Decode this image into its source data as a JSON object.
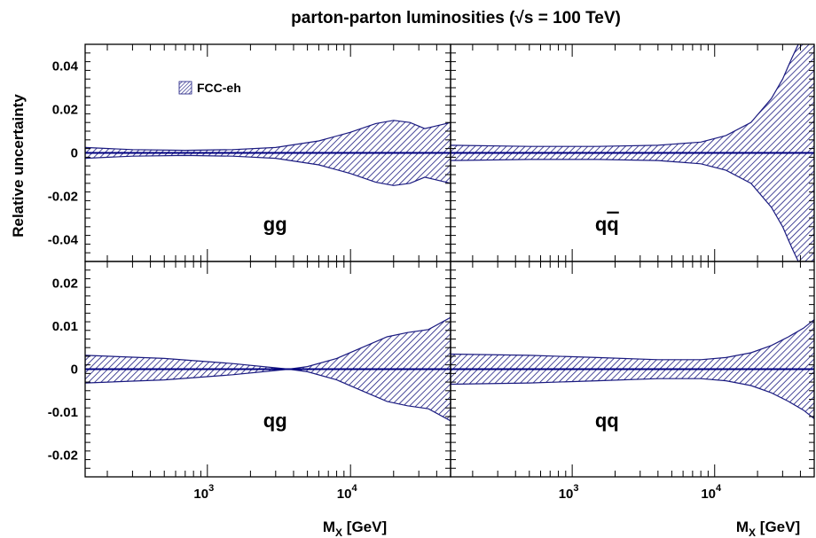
{
  "title": "parton-parton luminosities (√s = 100 TeV)",
  "ylabel": "Relative uncertainty",
  "xlabel_main": "M",
  "xlabel_sub": "X",
  "xlabel_unit": " [GeV]",
  "legend_label": "FCC-eh",
  "colors": {
    "band": "#1a1a80",
    "central": "#000080",
    "frame": "#000000"
  },
  "chart_data": [
    {
      "type": "area",
      "panel": "gg",
      "label": "gg",
      "xscale": "log",
      "xlim": [
        140,
        50000
      ],
      "ylim": [
        -0.05,
        0.05
      ],
      "yticks": [
        -0.04,
        -0.02,
        0,
        0.02,
        0.04
      ],
      "ytick_labels": [
        "-0.04",
        "-0.02",
        "0",
        "0.02",
        "0.04"
      ],
      "xticks": [
        1000,
        10000
      ],
      "xtick_labels": [
        "10",
        "10"
      ],
      "xtick_exps": [
        "3",
        "4"
      ],
      "legend": true,
      "series": [
        {
          "name": "FCC-eh",
          "x": [
            140,
            300,
            700,
            1500,
            3000,
            6000,
            10000,
            15000,
            20000,
            26000,
            33000,
            40000,
            50000
          ],
          "upper": [
            0.0025,
            0.0015,
            0.0012,
            0.0015,
            0.0025,
            0.0055,
            0.0095,
            0.0135,
            0.015,
            0.014,
            0.0112,
            0.0125,
            0.014
          ],
          "lower": [
            -0.0025,
            -0.0015,
            -0.0012,
            -0.0015,
            -0.0025,
            -0.0055,
            -0.0095,
            -0.0135,
            -0.015,
            -0.014,
            -0.0112,
            -0.0125,
            -0.014
          ]
        }
      ]
    },
    {
      "type": "area",
      "panel": "qqbar",
      "label": "q",
      "label_bar": "q",
      "xscale": "log",
      "xlim": [
        140,
        50000
      ],
      "ylim": [
        -0.05,
        0.05
      ],
      "xticks": [
        1000,
        10000
      ],
      "xtick_labels": [
        "10",
        "10"
      ],
      "xtick_exps": [
        "3",
        "4"
      ],
      "series": [
        {
          "name": "FCC-eh",
          "x": [
            140,
            500,
            1500,
            4000,
            8000,
            12000,
            18000,
            25000,
            30000,
            35000,
            40000,
            50000
          ],
          "upper": [
            0.0035,
            0.003,
            0.003,
            0.0035,
            0.005,
            0.008,
            0.014,
            0.025,
            0.034,
            0.044,
            0.052,
            0.066
          ],
          "lower": [
            -0.0035,
            -0.003,
            -0.003,
            -0.0035,
            -0.005,
            -0.008,
            -0.014,
            -0.025,
            -0.034,
            -0.044,
            -0.052,
            -0.066
          ]
        }
      ]
    },
    {
      "type": "area",
      "panel": "qg",
      "label": "qg",
      "xscale": "log",
      "xlim": [
        140,
        50000
      ],
      "ylim": [
        -0.025,
        0.025
      ],
      "yticks": [
        -0.02,
        -0.01,
        0,
        0.01,
        0.02
      ],
      "ytick_labels": [
        "-0.02",
        "-0.01",
        "0",
        "0.01",
        "0.02"
      ],
      "xticks": [
        1000,
        10000
      ],
      "xtick_labels": [
        "10",
        "10"
      ],
      "xtick_exps": [
        "3",
        "4"
      ],
      "series": [
        {
          "name": "FCC-eh",
          "x": [
            140,
            500,
            1500,
            3000,
            3700,
            5000,
            8000,
            12000,
            18000,
            25000,
            35000,
            50000
          ],
          "upper": [
            0.0032,
            0.0025,
            0.0013,
            0.0003,
            0.0,
            0.0006,
            0.0025,
            0.005,
            0.0075,
            0.0085,
            0.0092,
            0.012
          ],
          "lower": [
            -0.0032,
            -0.0025,
            -0.0013,
            -0.0003,
            0.0,
            -0.0006,
            -0.0025,
            -0.005,
            -0.0075,
            -0.0085,
            -0.0092,
            -0.012
          ]
        }
      ]
    },
    {
      "type": "area",
      "panel": "qq",
      "label": "qq",
      "xscale": "log",
      "xlim": [
        140,
        50000
      ],
      "ylim": [
        -0.025,
        0.025
      ],
      "xticks": [
        1000,
        10000
      ],
      "xtick_labels": [
        "10",
        "10"
      ],
      "xtick_exps": [
        "3",
        "4"
      ],
      "series": [
        {
          "name": "FCC-eh",
          "x": [
            140,
            500,
            1500,
            4000,
            8000,
            12000,
            18000,
            25000,
            33000,
            42000,
            50000
          ],
          "upper": [
            0.0035,
            0.0032,
            0.0027,
            0.0022,
            0.0022,
            0.0027,
            0.0038,
            0.0055,
            0.0075,
            0.0095,
            0.0115
          ],
          "lower": [
            -0.0035,
            -0.0032,
            -0.0027,
            -0.0022,
            -0.0022,
            -0.0027,
            -0.0038,
            -0.0055,
            -0.0075,
            -0.0095,
            -0.0115
          ]
        }
      ]
    }
  ]
}
